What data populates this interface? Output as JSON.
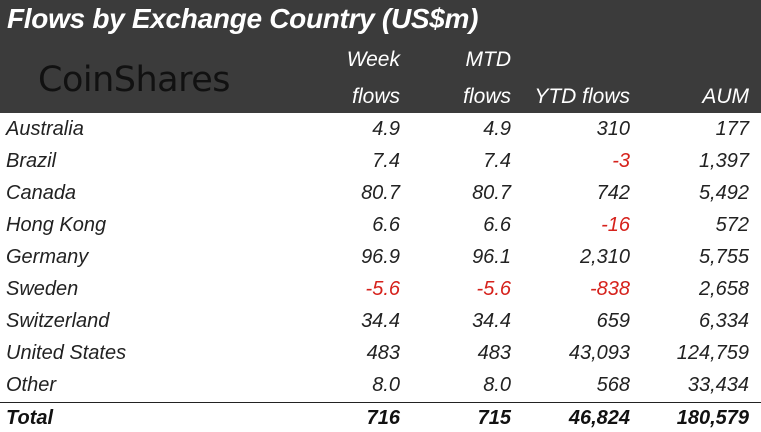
{
  "title": "Flows by Exchange Country (US$m)",
  "logo": "CoinShares",
  "columns": {
    "week_top": "Week",
    "week_bottom": "flows",
    "mtd_top": "MTD",
    "mtd_bottom": "flows",
    "ytd": "YTD flows",
    "aum": "AUM"
  },
  "colors": {
    "header_bg": "#3b3b3b",
    "negative": "#d6221c",
    "text": "#222222"
  },
  "rows": [
    {
      "country": "Australia",
      "week": "4.9",
      "mtd": "4.9",
      "ytd": "310",
      "aum": "177"
    },
    {
      "country": "Brazil",
      "week": "7.4",
      "mtd": "7.4",
      "ytd": "-3",
      "aum": "1,397"
    },
    {
      "country": "Canada",
      "week": "80.7",
      "mtd": "80.7",
      "ytd": "742",
      "aum": "5,492"
    },
    {
      "country": "Hong Kong",
      "week": "6.6",
      "mtd": "6.6",
      "ytd": "-16",
      "aum": "572"
    },
    {
      "country": "Germany",
      "week": "96.9",
      "mtd": "96.1",
      "ytd": "2,310",
      "aum": "5,755"
    },
    {
      "country": "Sweden",
      "week": "-5.6",
      "mtd": "-5.6",
      "ytd": "-838",
      "aum": "2,658"
    },
    {
      "country": "Switzerland",
      "week": "34.4",
      "mtd": "34.4",
      "ytd": "659",
      "aum": "6,334"
    },
    {
      "country": "United States",
      "week": "483",
      "mtd": "483",
      "ytd": "43,093",
      "aum": "124,759"
    },
    {
      "country": "Other",
      "week": "8.0",
      "mtd": "8.0",
      "ytd": "568",
      "aum": "33,434"
    }
  ],
  "total": {
    "label": "Total",
    "week": "716",
    "mtd": "715",
    "ytd": "46,824",
    "aum": "180,579"
  }
}
